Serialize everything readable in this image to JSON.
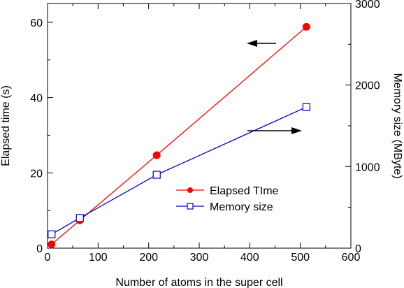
{
  "chart_data": {
    "type": "line",
    "xlabel": "Number of atoms in the super cell",
    "ylabel_left": "Elapsed time (s)",
    "ylabel_right": "Memory size (MByte)",
    "xlim": [
      0,
      600
    ],
    "ylim_left": [
      0,
      65
    ],
    "ylim_right": [
      0,
      3000
    ],
    "x_ticks": [
      0,
      100,
      200,
      300,
      400,
      500,
      600
    ],
    "x_tick_labels": [
      "0",
      "100",
      "200",
      "300",
      "400",
      "500",
      "600"
    ],
    "y_left_ticks": [
      0,
      20,
      40,
      60
    ],
    "y_left_tick_labels": [
      "0",
      "20",
      "40",
      "60"
    ],
    "y_right_ticks": [
      0,
      1000,
      2000,
      3000
    ],
    "y_right_tick_labels": [
      "0",
      "1000",
      "2000",
      "3000"
    ],
    "grid": false,
    "legend_placement": "center-right",
    "series": [
      {
        "name": "Elapsed TIme",
        "axis": "left",
        "marker": "filled-circle",
        "color": "#ff0000",
        "x": [
          8,
          64,
          216,
          512
        ],
        "y": [
          1.0,
          7.4,
          24.7,
          58.8
        ]
      },
      {
        "name": "Memory size",
        "axis": "right",
        "marker": "open-square",
        "color": "#0000cc",
        "x": [
          8,
          64,
          216,
          512
        ],
        "y": [
          170,
          370,
          900,
          1730
        ]
      }
    ]
  }
}
